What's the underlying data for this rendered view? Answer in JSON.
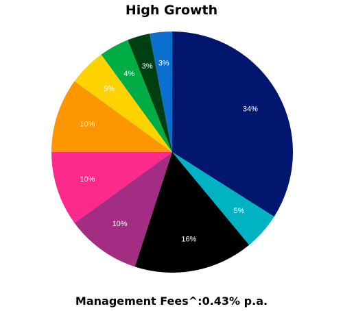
{
  "chart_data": {
    "type": "pie",
    "title": "High Growth",
    "start_angle_deg": 0,
    "direction": "clockwise",
    "slices": [
      {
        "value": 34,
        "label": "34%",
        "color": "#00166f"
      },
      {
        "value": 5,
        "label": "5%",
        "color": "#00b3c2"
      },
      {
        "value": 16,
        "label": "16%",
        "color": "#000000"
      },
      {
        "value": 10,
        "label": "10%",
        "color": "#a32d83"
      },
      {
        "value": 10,
        "label": "10%",
        "color": "#fd2a8c"
      },
      {
        "value": 10,
        "label": "10%",
        "color": "#fd9600"
      },
      {
        "value": 5,
        "label": "5%",
        "color": "#fed300"
      },
      {
        "value": 4,
        "label": "4%",
        "color": "#00ad45"
      },
      {
        "value": 3,
        "label": "3%",
        "color": "#003f11"
      },
      {
        "value": 3,
        "label": "3%",
        "color": "#0b6fd0"
      }
    ]
  },
  "footer": {
    "note": "Management Fees^:0.43% p.a."
  }
}
